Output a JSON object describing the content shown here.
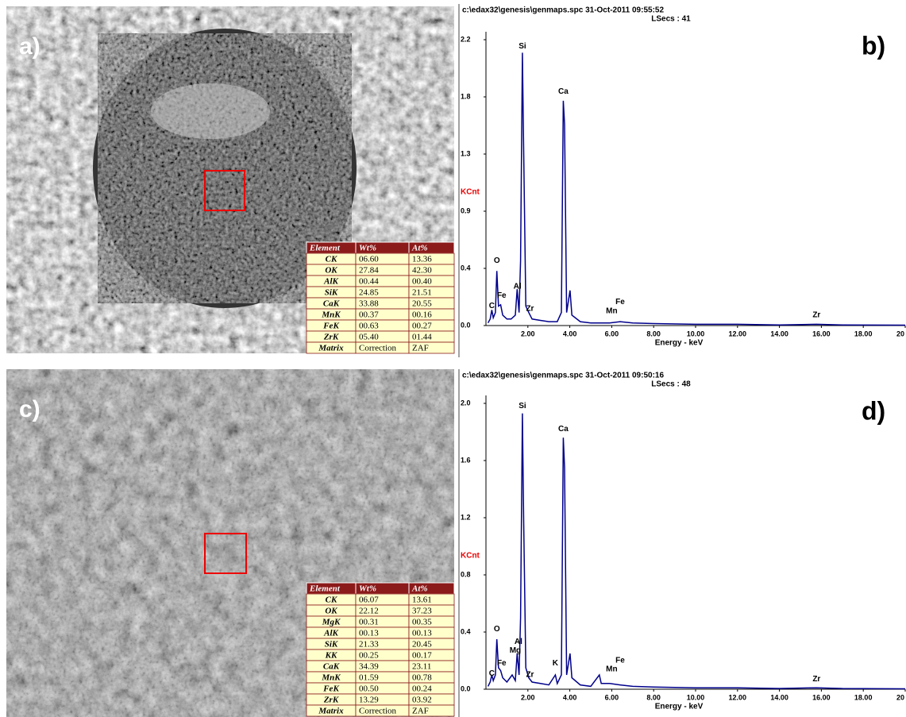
{
  "images": [
    {
      "label": "a)",
      "table": {
        "header": [
          "Element",
          "Wt%",
          "At%"
        ],
        "rows": [
          [
            "CK",
            "06.60",
            "13.36"
          ],
          [
            "OK",
            "27.84",
            "42.30"
          ],
          [
            "AlK",
            "00.44",
            "00.40"
          ],
          [
            "SiK",
            "24.85",
            "21.51"
          ],
          [
            "CaK",
            "33.88",
            "20.55"
          ],
          [
            "MnK",
            "00.37",
            "00.16"
          ],
          [
            "FeK",
            "00.63",
            "00.27"
          ],
          [
            "ZrK",
            "05.40",
            "01.44"
          ],
          [
            "Matrix",
            "Correction",
            "ZAF"
          ]
        ]
      }
    },
    {
      "label": "c)",
      "table": {
        "header": [
          "Element",
          "Wt%",
          "At%"
        ],
        "rows": [
          [
            "CK",
            "06.07",
            "13.61"
          ],
          [
            "OK",
            "22.12",
            "37.23"
          ],
          [
            "MgK",
            "00.31",
            "00.35"
          ],
          [
            "AlK",
            "00.13",
            "00.13"
          ],
          [
            "SiK",
            "21.33",
            "20.45"
          ],
          [
            "KK",
            "00.25",
            "00.17"
          ],
          [
            "CaK",
            "34.39",
            "23.11"
          ],
          [
            "MnK",
            "01.59",
            "00.78"
          ],
          [
            "FeK",
            "00.50",
            "00.24"
          ],
          [
            "ZrK",
            "13.29",
            "03.92"
          ],
          [
            "Matrix",
            "Correction",
            "ZAF"
          ]
        ]
      }
    }
  ],
  "chart_data": [
    {
      "type": "line",
      "title": "c:\\edax32\\genesis\\genmaps.spc  31-Oct-2011 09:55:52",
      "subtitle": "LSecs :  41",
      "panel_label": "b)",
      "ylabel": "KCnt",
      "xlabel": "Energy - keV",
      "color": "#00008b",
      "xlim": [
        0,
        20
      ],
      "ylim": [
        0,
        2.2
      ],
      "xticks": [
        {
          "value": 2,
          "label": "2.00"
        },
        {
          "value": 4,
          "label": "4.00"
        },
        {
          "value": 6,
          "label": "6.00"
        },
        {
          "value": 8,
          "label": "8.00"
        },
        {
          "value": 10,
          "label": "10.00"
        },
        {
          "value": 12,
          "label": "12.00"
        },
        {
          "value": 14,
          "label": "14.00"
        },
        {
          "value": 16,
          "label": "16.00"
        },
        {
          "value": 18,
          "label": "18.00"
        },
        {
          "value": 20,
          "label": "20"
        }
      ],
      "yticks": [
        {
          "value": 0,
          "label": "0.0"
        },
        {
          "value": 0.44,
          "label": "0.4"
        },
        {
          "value": 0.88,
          "label": "0.9"
        },
        {
          "value": 1.32,
          "label": "1.3"
        },
        {
          "value": 1.76,
          "label": "1.8"
        },
        2.2
      ],
      "x": [
        0.1,
        0.2,
        0.28,
        0.35,
        0.45,
        0.52,
        0.6,
        0.7,
        0.8,
        1.0,
        1.2,
        1.4,
        1.49,
        1.58,
        1.65,
        1.74,
        1.8,
        1.9,
        2.04,
        2.2,
        2.6,
        3.0,
        3.4,
        3.6,
        3.69,
        3.75,
        3.85,
        4.01,
        4.1,
        4.5,
        5.0,
        5.9,
        6.4,
        7.0,
        8.0,
        10.0,
        12.0,
        14.0,
        15.77,
        17.0,
        20
      ],
      "values": [
        0.02,
        0.05,
        0.12,
        0.06,
        0.1,
        0.42,
        0.15,
        0.16,
        0.08,
        0.05,
        0.05,
        0.08,
        0.28,
        0.1,
        0.5,
        2.1,
        1.35,
        0.15,
        0.1,
        0.05,
        0.04,
        0.03,
        0.03,
        0.1,
        1.73,
        1.55,
        0.1,
        0.27,
        0.08,
        0.03,
        0.02,
        0.02,
        0.03,
        0.02,
        0.015,
        0.01,
        0.01,
        0.005,
        0.01,
        0.005,
        0.003
      ],
      "annotations": [
        {
          "text": "Si",
          "x": 1.74,
          "y": 2.15
        },
        {
          "text": "Ca",
          "x": 3.69,
          "y": 1.8
        },
        {
          "text": "O",
          "x": 0.52,
          "y": 0.5
        },
        {
          "text": "Al",
          "x": 1.5,
          "y": 0.3
        },
        {
          "text": "C",
          "x": 0.28,
          "y": 0.15
        },
        {
          "text": "Fe",
          "x": 0.75,
          "y": 0.23
        },
        {
          "text": "Zr",
          "x": 2.1,
          "y": 0.13
        },
        {
          "text": "Mn",
          "x": 6.0,
          "y": 0.11
        },
        {
          "text": "Fe",
          "x": 6.4,
          "y": 0.18
        },
        {
          "text": "Zr",
          "x": 15.77,
          "y": 0.08
        }
      ]
    },
    {
      "type": "line",
      "title": "c:\\edax32\\genesis\\genmaps.spc  31-Oct-2011 09:50:16",
      "subtitle": "LSecs :  48",
      "panel_label": "d)",
      "ylabel": "KCnt",
      "xlabel": "Energy - keV",
      "color": "#00008b",
      "xlim": [
        0,
        20
      ],
      "ylim": [
        0,
        2.0
      ],
      "xticks": [
        {
          "value": 2,
          "label": "2.00"
        },
        {
          "value": 4,
          "label": "4.00"
        },
        {
          "value": 6,
          "label": "6.00"
        },
        {
          "value": 8,
          "label": "8.00"
        },
        {
          "value": 10,
          "label": "10.00"
        },
        {
          "value": 12,
          "label": "12.00"
        },
        {
          "value": 14,
          "label": "14.00"
        },
        {
          "value": 16,
          "label": "16.00"
        },
        {
          "value": 18,
          "label": "18.00"
        },
        {
          "value": 20,
          "label": "20"
        }
      ],
      "yticks": [
        {
          "value": 0,
          "label": "0.0"
        },
        0.4,
        0.8,
        1.2,
        1.6,
        {
          "value": 2,
          "label": "2.0"
        }
      ],
      "x": [
        0.1,
        0.2,
        0.28,
        0.35,
        0.45,
        0.52,
        0.6,
        0.7,
        0.8,
        1.0,
        1.25,
        1.4,
        1.49,
        1.58,
        1.65,
        1.74,
        1.8,
        1.9,
        2.04,
        2.2,
        2.6,
        3.0,
        3.31,
        3.4,
        3.6,
        3.69,
        3.75,
        3.85,
        4.01,
        4.1,
        4.5,
        5.0,
        5.41,
        5.5,
        5.9,
        6.4,
        7.0,
        8.0,
        10.0,
        12.0,
        14.0,
        15.77,
        17.0,
        20
      ],
      "values": [
        0.02,
        0.05,
        0.1,
        0.06,
        0.1,
        0.35,
        0.15,
        0.13,
        0.08,
        0.05,
        0.1,
        0.06,
        0.25,
        0.1,
        0.5,
        1.93,
        1.18,
        0.15,
        0.08,
        0.05,
        0.04,
        0.03,
        0.1,
        0.04,
        0.1,
        1.76,
        1.55,
        0.1,
        0.25,
        0.08,
        0.03,
        0.02,
        0.1,
        0.04,
        0.04,
        0.03,
        0.02,
        0.015,
        0.01,
        0.01,
        0.005,
        0.01,
        0.005,
        0.003
      ],
      "annotations": [
        {
          "text": "Si",
          "x": 1.74,
          "y": 1.98
        },
        {
          "text": "Ca",
          "x": 3.69,
          "y": 1.82
        },
        {
          "text": "O",
          "x": 0.52,
          "y": 0.42
        },
        {
          "text": "Al",
          "x": 1.55,
          "y": 0.33
        },
        {
          "text": "Mg",
          "x": 1.4,
          "y": 0.27
        },
        {
          "text": "Fe",
          "x": 0.75,
          "y": 0.18
        },
        {
          "text": "C",
          "x": 0.28,
          "y": 0.11
        },
        {
          "text": "Zr",
          "x": 2.1,
          "y": 0.1
        },
        {
          "text": "K",
          "x": 3.31,
          "y": 0.18
        },
        {
          "text": "Mn",
          "x": 6.0,
          "y": 0.14
        },
        {
          "text": "Fe",
          "x": 6.4,
          "y": 0.2
        },
        {
          "text": "Zr",
          "x": 15.77,
          "y": 0.07
        }
      ]
    }
  ]
}
